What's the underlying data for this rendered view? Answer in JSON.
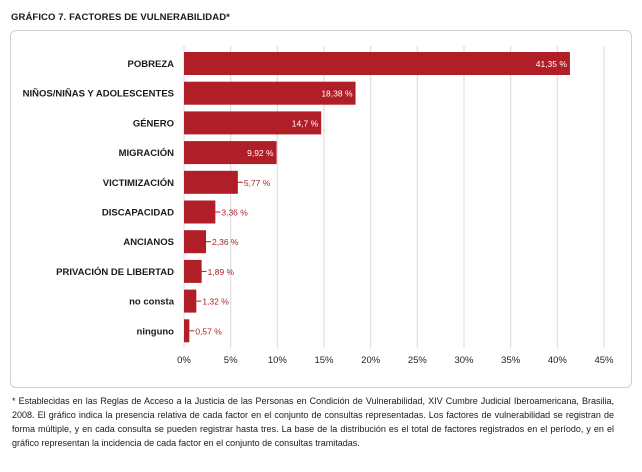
{
  "title": "GRÁFICO 7. FACTORES DE VULNERABILIDAD*",
  "footnote": "* Establecidas en las Reglas de Acceso a la Justicia de las Personas en Condición de Vulnerabilidad, XIV Cumbre Judicial Iberoamericana, Brasilia, 2008. El gráfico indica la presencia relativa de cada factor en el conjunto de consultas representadas. Los factores de vulnerabilidad se registran de forma múltiple, y en cada consulta se pueden registrar hasta tres. La base de la distribución es el total de factores registrados en el período, y en el gráfico representan la incidencia de cada factor en el conjunto de consultas tramitadas.",
  "colors": {
    "bar": "#b01e28",
    "grid": "#d9d9d9",
    "label_outside": "#b01e28"
  },
  "chart_data": {
    "type": "bar",
    "orientation": "horizontal",
    "categories": [
      "POBREZA",
      "NIÑOS/NIÑAS Y ADOLESCENTES",
      "GÉNERO",
      "MIGRACIÓN",
      "VICTIMIZACIÓN",
      "DISCAPACIDAD",
      "ANCIANOS",
      "PRIVACIÓN DE LIBERTAD",
      "no consta",
      "ninguno"
    ],
    "values": [
      41.35,
      18.38,
      14.7,
      9.92,
      5.77,
      3.36,
      2.36,
      1.89,
      1.32,
      0.57
    ],
    "value_labels": [
      "41,35 %",
      "18,38 %",
      "14,7 %",
      "9,92 %",
      "5,77 %",
      "3,36 %",
      "2,36 %",
      "1,89 %",
      "1,32 %",
      "0,57 %"
    ],
    "xlim": [
      0,
      45
    ],
    "xticks": [
      0,
      5,
      10,
      15,
      20,
      25,
      30,
      35,
      40,
      45
    ],
    "xtick_labels": [
      "0%",
      "5%",
      "10%",
      "15%",
      "20%",
      "25%",
      "30%",
      "35%",
      "40%",
      "45%"
    ],
    "grid": true
  }
}
